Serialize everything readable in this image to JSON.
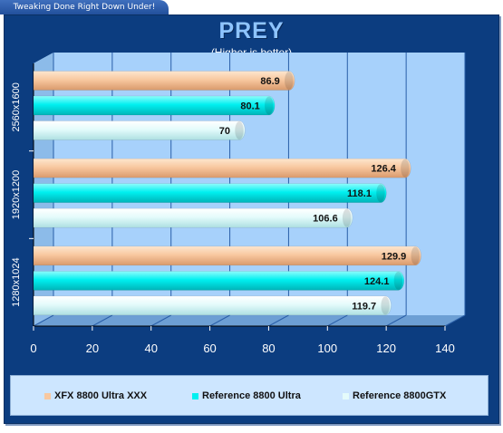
{
  "banner": "Tweaking Done Right Down Under!",
  "chart_data": {
    "type": "bar",
    "orientation": "horizontal",
    "title": "PREY",
    "subtitle": "(Higher is better)",
    "categories": [
      "2560x1600",
      "1920x1200",
      "1280x1024"
    ],
    "series": [
      {
        "name": "XFX 8800 Ultra XXX",
        "color": "#f8c8a0",
        "values": [
          86.9,
          126.4,
          129.9
        ]
      },
      {
        "name": "Reference 8800 Ultra",
        "color": "#00f0f0",
        "values": [
          80.1,
          118.1,
          124.1
        ]
      },
      {
        "name": "Reference 8800GTX",
        "color": "#e4fbfb",
        "values": [
          70,
          106.6,
          119.7
        ]
      }
    ],
    "xlim": [
      0,
      140
    ],
    "xticks": [
      "0",
      "20",
      "40",
      "60",
      "80",
      "100",
      "120",
      "140"
    ],
    "value_labels": [
      [
        "86.9",
        "126.4",
        "129.9"
      ],
      [
        "80.1",
        "118.1",
        "124.1"
      ],
      [
        "70",
        "106.6",
        "119.7"
      ]
    ],
    "grid": true,
    "legend_position": "bottom"
  }
}
